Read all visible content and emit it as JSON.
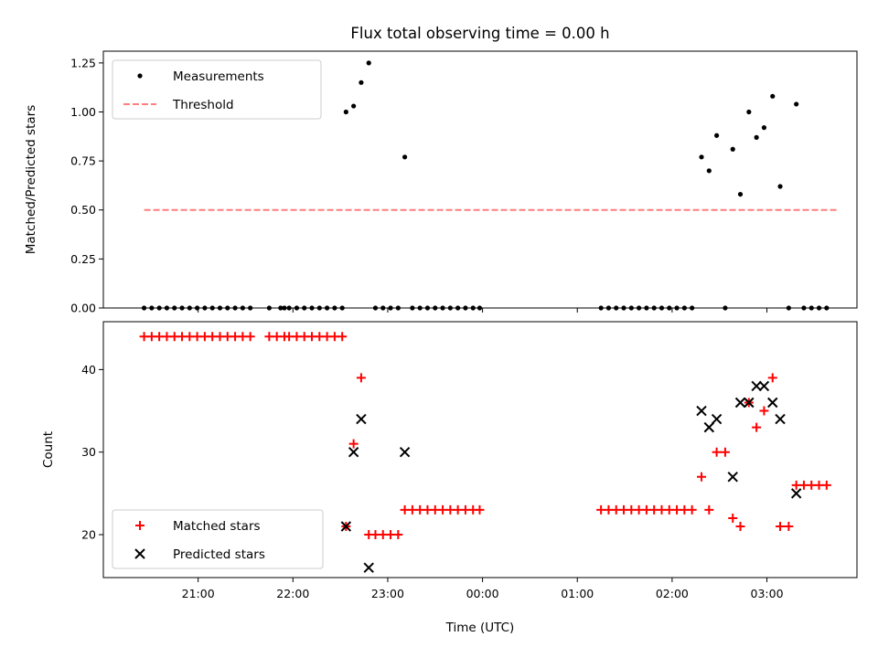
{
  "chart_data": {
    "type": "scatter",
    "title": "Flux total observing time = 0.00 h",
    "xlabel": "Time (UTC)",
    "x_ticks": [
      "21:00",
      "22:00",
      "23:00",
      "00:00",
      "01:00",
      "02:00",
      "03:00"
    ],
    "x_tick_hours": [
      21,
      22,
      23,
      24,
      25,
      26,
      27
    ],
    "xlim": [
      20.0,
      27.95
    ],
    "panels": [
      {
        "ylabel": "Matched/Predicted stars",
        "ylim": [
          0,
          1.31
        ],
        "yticks": [
          "0.00",
          "0.25",
          "0.50",
          "0.75",
          "1.00",
          "1.25"
        ],
        "ytick_values": [
          0,
          0.25,
          0.5,
          0.75,
          1.0,
          1.25
        ],
        "legend": {
          "placement": "top-left",
          "entries": [
            "Measurements",
            "Threshold"
          ]
        },
        "series": [
          {
            "name": "Measurements",
            "marker": "dot",
            "color": "#000000",
            "points": [
              [
                20.43,
                0
              ],
              [
                20.51,
                0
              ],
              [
                20.59,
                0
              ],
              [
                20.67,
                0
              ],
              [
                20.75,
                0
              ],
              [
                20.83,
                0
              ],
              [
                20.91,
                0
              ],
              [
                20.99,
                0
              ],
              [
                21.07,
                0
              ],
              [
                21.15,
                0
              ],
              [
                21.23,
                0
              ],
              [
                21.31,
                0
              ],
              [
                21.39,
                0
              ],
              [
                21.47,
                0
              ],
              [
                21.55,
                0
              ],
              [
                21.75,
                0
              ],
              [
                21.87,
                0
              ],
              [
                21.91,
                0
              ],
              [
                21.96,
                0
              ],
              [
                22.04,
                0
              ],
              [
                22.12,
                0
              ],
              [
                22.2,
                0
              ],
              [
                22.28,
                0
              ],
              [
                22.36,
                0
              ],
              [
                22.44,
                0
              ],
              [
                22.52,
                0
              ],
              [
                22.56,
                1.0
              ],
              [
                22.64,
                1.03
              ],
              [
                22.72,
                1.15
              ],
              [
                22.8,
                1.25
              ],
              [
                22.87,
                0
              ],
              [
                22.95,
                0
              ],
              [
                23.03,
                0
              ],
              [
                23.11,
                0
              ],
              [
                23.18,
                0.77
              ],
              [
                23.26,
                0
              ],
              [
                23.34,
                0
              ],
              [
                23.42,
                0
              ],
              [
                23.5,
                0
              ],
              [
                23.58,
                0
              ],
              [
                23.66,
                0
              ],
              [
                23.74,
                0
              ],
              [
                23.82,
                0
              ],
              [
                23.9,
                0
              ],
              [
                23.97,
                0
              ],
              [
                25.25,
                0
              ],
              [
                25.33,
                0
              ],
              [
                25.41,
                0
              ],
              [
                25.49,
                0
              ],
              [
                25.57,
                0
              ],
              [
                25.65,
                0
              ],
              [
                25.73,
                0
              ],
              [
                25.81,
                0
              ],
              [
                25.89,
                0
              ],
              [
                25.97,
                0
              ],
              [
                26.05,
                0
              ],
              [
                26.13,
                0
              ],
              [
                26.21,
                0
              ],
              [
                26.31,
                0.77
              ],
              [
                26.39,
                0.7
              ],
              [
                26.47,
                0.88
              ],
              [
                26.56,
                0
              ],
              [
                26.64,
                0.81
              ],
              [
                26.72,
                0.58
              ],
              [
                26.81,
                1.0
              ],
              [
                26.89,
                0.87
              ],
              [
                26.97,
                0.92
              ],
              [
                27.06,
                1.08
              ],
              [
                27.14,
                0.62
              ],
              [
                27.23,
                0
              ],
              [
                27.31,
                1.04
              ],
              [
                27.39,
                0
              ],
              [
                27.47,
                0
              ],
              [
                27.55,
                0
              ],
              [
                27.63,
                0
              ]
            ]
          },
          {
            "name": "Threshold",
            "kind": "dashed-line",
            "color": "#ff7f7f",
            "y": 0.5,
            "x_range": [
              20.43,
              27.75
            ]
          }
        ]
      },
      {
        "ylabel": "Count",
        "ylim": [
          14.8,
          45.8
        ],
        "yticks": [
          "20",
          "30",
          "40"
        ],
        "ytick_values": [
          20,
          30,
          40
        ],
        "legend": {
          "placement": "lower-left",
          "entries": [
            "Matched stars",
            "Predicted stars"
          ]
        },
        "series": [
          {
            "name": "Matched stars",
            "marker": "plus",
            "color": "#ff0000",
            "points": [
              [
                20.43,
                44
              ],
              [
                20.51,
                44
              ],
              [
                20.59,
                44
              ],
              [
                20.67,
                44
              ],
              [
                20.75,
                44
              ],
              [
                20.83,
                44
              ],
              [
                20.91,
                44
              ],
              [
                20.99,
                44
              ],
              [
                21.07,
                44
              ],
              [
                21.15,
                44
              ],
              [
                21.23,
                44
              ],
              [
                21.31,
                44
              ],
              [
                21.39,
                44
              ],
              [
                21.47,
                44
              ],
              [
                21.55,
                44
              ],
              [
                21.75,
                44
              ],
              [
                21.83,
                44
              ],
              [
                21.91,
                44
              ],
              [
                21.96,
                44
              ],
              [
                22.04,
                44
              ],
              [
                22.12,
                44
              ],
              [
                22.2,
                44
              ],
              [
                22.28,
                44
              ],
              [
                22.36,
                44
              ],
              [
                22.44,
                44
              ],
              [
                22.52,
                44
              ],
              [
                22.56,
                21
              ],
              [
                22.64,
                31
              ],
              [
                22.72,
                39
              ],
              [
                22.8,
                20
              ],
              [
                22.87,
                20
              ],
              [
                22.95,
                20
              ],
              [
                23.03,
                20
              ],
              [
                23.11,
                20
              ],
              [
                23.18,
                23
              ],
              [
                23.26,
                23
              ],
              [
                23.34,
                23
              ],
              [
                23.42,
                23
              ],
              [
                23.5,
                23
              ],
              [
                23.58,
                23
              ],
              [
                23.66,
                23
              ],
              [
                23.74,
                23
              ],
              [
                23.82,
                23
              ],
              [
                23.9,
                23
              ],
              [
                23.97,
                23
              ],
              [
                25.25,
                23
              ],
              [
                25.33,
                23
              ],
              [
                25.41,
                23
              ],
              [
                25.49,
                23
              ],
              [
                25.57,
                23
              ],
              [
                25.65,
                23
              ],
              [
                25.73,
                23
              ],
              [
                25.81,
                23
              ],
              [
                25.89,
                23
              ],
              [
                25.97,
                23
              ],
              [
                26.05,
                23
              ],
              [
                26.13,
                23
              ],
              [
                26.21,
                23
              ],
              [
                26.31,
                27
              ],
              [
                26.39,
                23
              ],
              [
                26.47,
                30
              ],
              [
                26.56,
                30
              ],
              [
                26.64,
                22
              ],
              [
                26.72,
                21
              ],
              [
                26.81,
                36
              ],
              [
                26.89,
                33
              ],
              [
                26.97,
                35
              ],
              [
                27.06,
                39
              ],
              [
                27.14,
                21
              ],
              [
                27.23,
                21
              ],
              [
                27.31,
                26
              ],
              [
                27.39,
                26
              ],
              [
                27.47,
                26
              ],
              [
                27.55,
                26
              ],
              [
                27.63,
                26
              ]
            ]
          },
          {
            "name": "Predicted stars",
            "marker": "x",
            "color": "#000000",
            "points": [
              [
                22.56,
                21
              ],
              [
                22.64,
                30
              ],
              [
                22.72,
                34
              ],
              [
                22.8,
                16
              ],
              [
                23.18,
                30
              ],
              [
                26.31,
                35
              ],
              [
                26.39,
                33
              ],
              [
                26.47,
                34
              ],
              [
                26.64,
                27
              ],
              [
                26.72,
                36
              ],
              [
                26.81,
                36
              ],
              [
                26.89,
                38
              ],
              [
                26.97,
                38
              ],
              [
                27.06,
                36
              ],
              [
                27.14,
                34
              ],
              [
                27.31,
                25
              ]
            ]
          }
        ]
      }
    ]
  }
}
